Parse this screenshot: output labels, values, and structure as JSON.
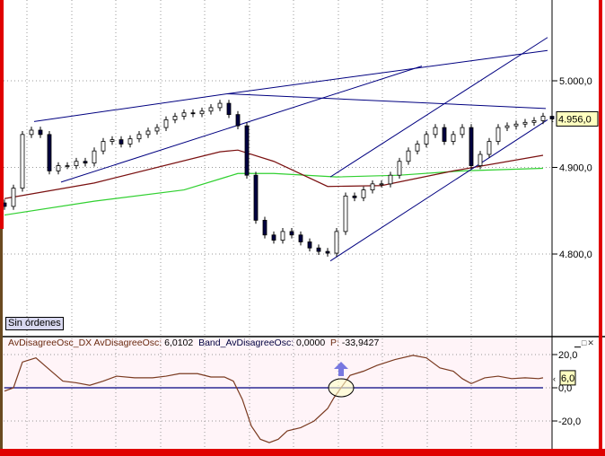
{
  "chart_data": [
    {
      "type": "candlestick",
      "title": "",
      "ylim": [
        4760,
        5070
      ],
      "y_ticks": [
        "5.000,0",
        "4.900,0",
        "4.800,0"
      ],
      "y_tick_values": [
        5000,
        4900,
        4800
      ],
      "last_price_label": "4.956,0",
      "last_price": 4956,
      "closes": [
        4855,
        4876,
        4938,
        4943,
        4938,
        4896,
        4902,
        4902,
        4907,
        4905,
        4919,
        4930,
        4932,
        4927,
        4933,
        4938,
        4942,
        4946,
        4955,
        4959,
        4963,
        4962,
        4965,
        4969,
        4974,
        4961,
        4948,
        4891,
        4839,
        4822,
        4816,
        4826,
        4822,
        4814,
        4807,
        4803,
        4801,
        4826,
        4867,
        4865,
        4874,
        4881,
        4881,
        4891,
        4907,
        4919,
        4927,
        4938,
        4946,
        4930,
        4938,
        4946,
        4902,
        4915,
        4930,
        4946,
        4948,
        4950,
        4952,
        4954,
        4959,
        4956
      ],
      "ma_slow_red": [
        [
          0,
          4864
        ],
        [
          10,
          4882
        ],
        [
          24,
          4918
        ],
        [
          26,
          4920
        ],
        [
          30,
          4907
        ],
        [
          36,
          4878
        ],
        [
          42,
          4879
        ],
        [
          50,
          4896
        ],
        [
          60,
          4914
        ]
      ],
      "ma_long_green": [
        [
          0,
          4845
        ],
        [
          10,
          4861
        ],
        [
          20,
          4874
        ],
        [
          26,
          4893
        ],
        [
          30,
          4893
        ],
        [
          37,
          4889
        ],
        [
          44,
          4891
        ],
        [
          51,
          4896
        ],
        [
          60,
          4899
        ]
      ],
      "trendlines": [
        [
          [
            3.3,
            4953
          ],
          [
            24.8,
            4985
          ]
        ],
        [
          [
            24.8,
            4985
          ],
          [
            60.3,
            4968
          ]
        ],
        [
          [
            24.8,
            4985
          ],
          [
            60.5,
            5035
          ]
        ],
        [
          [
            6.3,
            4883
          ],
          [
            46.5,
            5017
          ]
        ],
        [
          [
            36.3,
            4889
          ],
          [
            60.5,
            5050
          ]
        ],
        [
          [
            36.3,
            4792
          ],
          [
            60.5,
            4955
          ]
        ]
      ],
      "status_label": "Sin órdenes"
    },
    {
      "type": "line",
      "title": "AvDisagreeOsc_DX",
      "legend": {
        "name": "AvDisagreeOsc_DX",
        "osc_label": "AvDisagreeOsc:",
        "osc_value": "6,0102",
        "band_label": "Band_AvDisagreeOsc:",
        "band_value": "0,0000",
        "p_label": "P:",
        "p_value": "-33,9427"
      },
      "ylim": [
        -35,
        22
      ],
      "y_ticks": [
        "20,0",
        "0,0",
        "-20,0"
      ],
      "y_tick_values": [
        20,
        0,
        -20
      ],
      "last_value_label": "6,0",
      "band": 0,
      "points": [
        [
          0,
          -2
        ],
        [
          1,
          0
        ],
        [
          2,
          15.5
        ],
        [
          3.5,
          18
        ],
        [
          5,
          11
        ],
        [
          6.5,
          4
        ],
        [
          8,
          3
        ],
        [
          9.5,
          1.5
        ],
        [
          11,
          4
        ],
        [
          12.5,
          7
        ],
        [
          14.5,
          6
        ],
        [
          16.5,
          6
        ],
        [
          18,
          7
        ],
        [
          19.5,
          8.5
        ],
        [
          21.5,
          8.5
        ],
        [
          23,
          6.5
        ],
        [
          24.5,
          6.5
        ],
        [
          25.5,
          4
        ],
        [
          26.5,
          -7
        ],
        [
          27.5,
          -23
        ],
        [
          28.5,
          -31
        ],
        [
          29.5,
          -33
        ],
        [
          30.5,
          -31
        ],
        [
          31.5,
          -26
        ],
        [
          33,
          -24
        ],
        [
          34.5,
          -20
        ],
        [
          36,
          -12.5
        ],
        [
          36.7,
          -6
        ],
        [
          37.5,
          0
        ],
        [
          38.5,
          7.5
        ],
        [
          40,
          10
        ],
        [
          41.5,
          13.5
        ],
        [
          43.5,
          17
        ],
        [
          45.5,
          19.5
        ],
        [
          47,
          18
        ],
        [
          48.5,
          12
        ],
        [
          50,
          10
        ],
        [
          51,
          5.5
        ],
        [
          52,
          2.5
        ],
        [
          53.5,
          6
        ],
        [
          55,
          7
        ],
        [
          56.5,
          5.5
        ],
        [
          58,
          6
        ],
        [
          59.5,
          5.5
        ],
        [
          60,
          6
        ]
      ],
      "signal_bar": 37.5
    }
  ],
  "colors": {
    "bull": "#ffffff",
    "bear": "#000040",
    "trend": "#000080",
    "ma_red": "#7a1010",
    "ma_green": "#30d030",
    "osc": "#7a3a20",
    "band": "#000080",
    "frame": "#e00000",
    "label_bg": "#ffffc0",
    "arrow": "#7878e0"
  },
  "window_buttons": "▁□✕"
}
